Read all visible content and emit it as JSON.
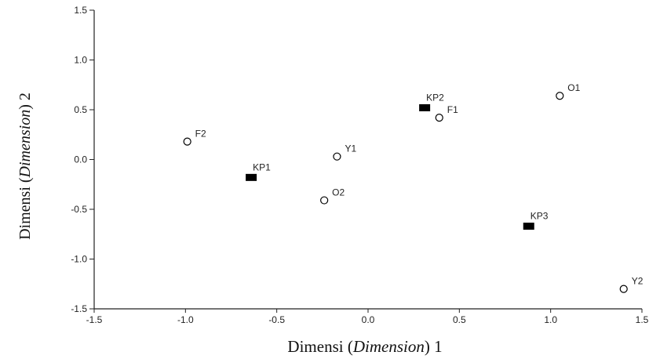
{
  "chart_data": {
    "type": "scatter",
    "xlabel": {
      "prefix": "Dimensi (",
      "italic": "Dimension",
      "suffix": ") 1"
    },
    "ylabel": {
      "prefix": "Dimensi (",
      "italic": "Dimension",
      "suffix": ") 2"
    },
    "xlim": [
      -1.5,
      1.5
    ],
    "ylim": [
      -1.5,
      1.5
    ],
    "xticks": [
      -1.5,
      -1.0,
      -0.5,
      0.0,
      0.5,
      1.0,
      1.5
    ],
    "yticks": [
      -1.5,
      -1.0,
      -0.5,
      0.0,
      0.5,
      1.0,
      1.5
    ],
    "grid": false,
    "series": [
      {
        "marker": "square",
        "color": "#000000",
        "points": [
          {
            "label": "KP1",
            "x": -0.64,
            "y": -0.18
          },
          {
            "label": "KP2",
            "x": 0.31,
            "y": 0.52
          },
          {
            "label": "KP3",
            "x": 0.88,
            "y": -0.67
          }
        ]
      },
      {
        "marker": "circle",
        "color": "#000000",
        "points": [
          {
            "label": "O1",
            "x": 1.05,
            "y": 0.64
          },
          {
            "label": "F1",
            "x": 0.39,
            "y": 0.42
          },
          {
            "label": "F2",
            "x": -0.99,
            "y": 0.18
          },
          {
            "label": "Y1",
            "x": -0.17,
            "y": 0.03
          },
          {
            "label": "O2",
            "x": -0.24,
            "y": -0.41
          },
          {
            "label": "Y2",
            "x": 1.4,
            "y": -1.3
          }
        ]
      }
    ]
  }
}
